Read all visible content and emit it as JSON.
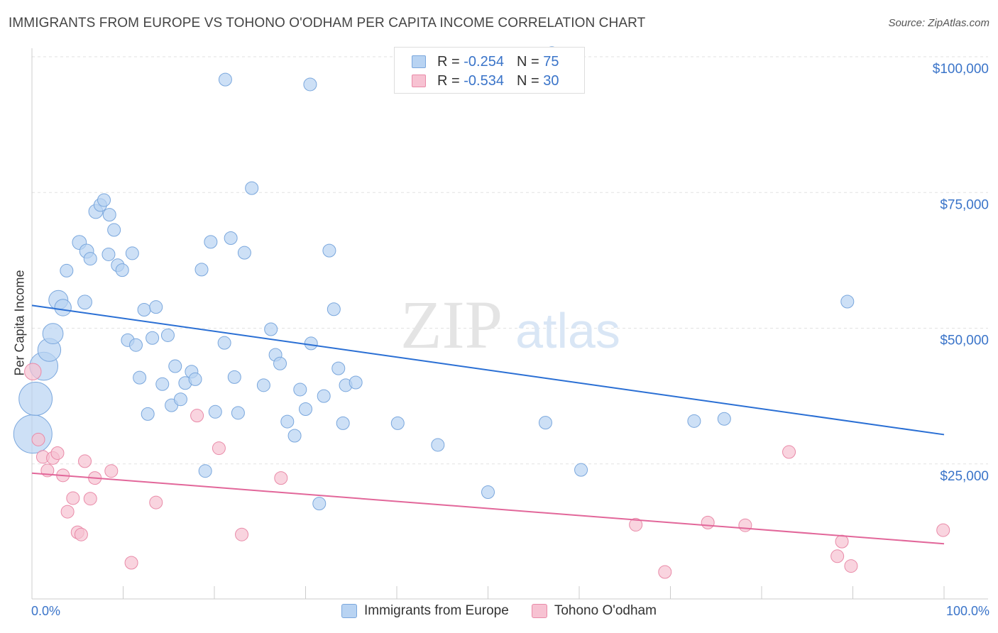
{
  "title": "IMMIGRANTS FROM EUROPE VS TOHONO O'ODHAM PER CAPITA INCOME CORRELATION CHART",
  "source": "Source: ZipAtlas.com",
  "watermark": {
    "zip": "ZIP",
    "atlas": "atlas"
  },
  "colors": {
    "blue_fill": "#b8d3f2",
    "blue_stroke": "#7aa7dd",
    "blue_line": "#2a6fd4",
    "pink_fill": "#f7c2d2",
    "pink_stroke": "#e98aa8",
    "pink_line": "#e2679a",
    "axis_label": "#3a74c9"
  },
  "legend": {
    "rows": [
      {
        "r_label": "R =",
        "r_value": "-0.254",
        "n_label": "N =",
        "n_value": "75"
      },
      {
        "r_label": "R =",
        "r_value": "-0.534",
        "n_label": "N =",
        "n_value": "30"
      }
    ]
  },
  "bottom_legend": {
    "series1": "Immigrants from Europe",
    "series2": "Tohono O'odham"
  },
  "chart_data": {
    "type": "scatter",
    "xlabel": "",
    "ylabel": "Per Capita Income",
    "xlim": [
      0,
      100
    ],
    "ylim": [
      0,
      105000
    ],
    "x_tick_labels": {
      "min": "0.0%",
      "max": "100.0%"
    },
    "y_ticks": [
      {
        "value": 25000,
        "label": "$25,000"
      },
      {
        "value": 50000,
        "label": "$50,000"
      },
      {
        "value": 75000,
        "label": "$75,000"
      },
      {
        "value": 100000,
        "label": "$100,000"
      }
    ],
    "grid": true,
    "legend_position": "top-center",
    "series": [
      {
        "name": "Immigrants from Europe",
        "trend": {
          "x": [
            0,
            100
          ],
          "y": [
            54200,
            30400
          ]
        },
        "points": [
          [
            0.1,
            30500,
            3
          ],
          [
            0.4,
            37000,
            2.6
          ],
          [
            1.3,
            43000,
            2.2
          ],
          [
            1.9,
            46000,
            1.8
          ],
          [
            2.3,
            49000,
            1.6
          ],
          [
            2.9,
            55200,
            1.5
          ],
          [
            3.4,
            53800,
            1.3
          ],
          [
            5.2,
            65800,
            1.1
          ],
          [
            6.0,
            64200,
            1.1
          ],
          [
            3.8,
            60600,
            1
          ],
          [
            5.8,
            54800,
            1.1
          ],
          [
            6.4,
            62800,
            1
          ],
          [
            7.0,
            71500,
            1.1
          ],
          [
            7.5,
            72700,
            1
          ],
          [
            7.9,
            73600,
            1
          ],
          [
            8.5,
            70900,
            1
          ],
          [
            8.4,
            63600,
            1
          ],
          [
            9.0,
            68100,
            1
          ],
          [
            9.4,
            61600,
            1
          ],
          [
            9.9,
            60700,
            1
          ],
          [
            10.5,
            47800,
            1
          ],
          [
            11.0,
            63800,
            1
          ],
          [
            11.4,
            46900,
            1
          ],
          [
            11.8,
            40900,
            1
          ],
          [
            12.3,
            53400,
            1
          ],
          [
            12.7,
            34200,
            1
          ],
          [
            13.2,
            48200,
            1
          ],
          [
            13.6,
            53900,
            1
          ],
          [
            14.3,
            39700,
            1
          ],
          [
            14.9,
            48700,
            1
          ],
          [
            15.3,
            35800,
            1
          ],
          [
            15.7,
            43000,
            1
          ],
          [
            16.3,
            36900,
            1
          ],
          [
            16.8,
            39900,
            1
          ],
          [
            17.5,
            42000,
            1
          ],
          [
            17.9,
            40600,
            1
          ],
          [
            18.6,
            60800,
            1
          ],
          [
            19.0,
            23700,
            1
          ],
          [
            19.6,
            65900,
            1
          ],
          [
            20.1,
            34600,
            1
          ],
          [
            21.1,
            47300,
            1
          ],
          [
            21.8,
            66600,
            1
          ],
          [
            22.2,
            41000,
            1
          ],
          [
            22.6,
            34400,
            1
          ],
          [
            23.3,
            63900,
            1
          ],
          [
            24.1,
            75800,
            1
          ],
          [
            25.4,
            39500,
            1
          ],
          [
            26.2,
            49800,
            1
          ],
          [
            26.7,
            45100,
            1
          ],
          [
            27.2,
            43500,
            1
          ],
          [
            28.0,
            32800,
            1
          ],
          [
            28.8,
            30200,
            1
          ],
          [
            29.4,
            38700,
            1
          ],
          [
            30.0,
            35100,
            1
          ],
          [
            30.6,
            47200,
            1
          ],
          [
            31.5,
            17700,
            1
          ],
          [
            32.0,
            37500,
            1
          ],
          [
            32.6,
            64300,
            1
          ],
          [
            33.1,
            53500,
            1
          ],
          [
            33.6,
            42600,
            1
          ],
          [
            34.1,
            32500,
            1
          ],
          [
            34.4,
            39500,
            1
          ],
          [
            35.5,
            40000,
            1
          ],
          [
            21.2,
            95800,
            1
          ],
          [
            30.5,
            94900,
            1
          ],
          [
            40.1,
            32500,
            1
          ],
          [
            44.5,
            28500,
            1
          ],
          [
            50.0,
            19800,
            1
          ],
          [
            56.3,
            32600,
            1
          ],
          [
            60.2,
            23900,
            1
          ],
          [
            72.6,
            32900,
            1
          ],
          [
            75.9,
            33300,
            1
          ],
          [
            89.4,
            54900,
            1
          ],
          [
            57.0,
            100800,
            0.9
          ],
          [
            55.0,
            98500,
            0.9
          ]
        ]
      },
      {
        "name": "Tohono O'odham",
        "trend": {
          "x": [
            0,
            100
          ],
          "y": [
            23300,
            10300
          ]
        },
        "points": [
          [
            0.1,
            42000,
            1.3
          ],
          [
            0.7,
            29500,
            1
          ],
          [
            1.2,
            26300,
            1
          ],
          [
            1.7,
            23800,
            1
          ],
          [
            2.3,
            26100,
            1
          ],
          [
            2.8,
            27000,
            1
          ],
          [
            3.4,
            22900,
            1
          ],
          [
            3.9,
            16200,
            1
          ],
          [
            4.5,
            18700,
            1
          ],
          [
            5.0,
            12400,
            1
          ],
          [
            5.4,
            12000,
            1
          ],
          [
            5.8,
            25500,
            1
          ],
          [
            6.4,
            18600,
            1
          ],
          [
            6.9,
            22400,
            1
          ],
          [
            8.7,
            23700,
            1
          ],
          [
            10.9,
            6800,
            1
          ],
          [
            13.6,
            17900,
            1
          ],
          [
            18.1,
            33900,
            1
          ],
          [
            20.5,
            27900,
            1
          ],
          [
            23.0,
            12000,
            1
          ],
          [
            27.3,
            22400,
            1
          ],
          [
            66.2,
            13800,
            1
          ],
          [
            69.4,
            5100,
            1
          ],
          [
            74.1,
            14200,
            1
          ],
          [
            78.2,
            13700,
            1
          ],
          [
            83.0,
            27200,
            1
          ],
          [
            88.3,
            8000,
            1
          ],
          [
            89.8,
            6200,
            1
          ],
          [
            99.9,
            12800,
            1
          ],
          [
            88.8,
            10700,
            1
          ]
        ]
      }
    ]
  }
}
